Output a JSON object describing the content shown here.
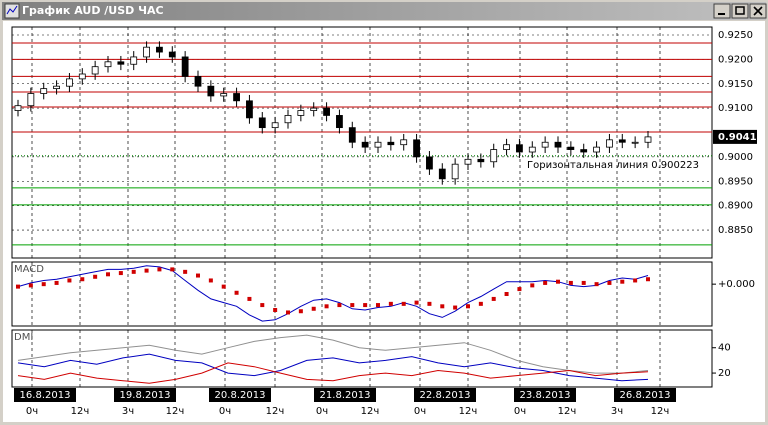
{
  "window": {
    "title": "График AUD /USD ЧАС"
  },
  "time_axis": {
    "dates": [
      "16.8.2013",
      "19.8.2013",
      "20.8.2013",
      "21.8.2013",
      "22.8.2013",
      "23.8.2013",
      "26.8.2013"
    ],
    "hours": [
      "0ч",
      "12ч",
      "3ч",
      "12ч",
      "0ч",
      "12ч",
      "0ч",
      "12ч",
      "0ч",
      "12ч",
      "0ч",
      "12ч",
      "3ч",
      "12ч"
    ]
  },
  "chart_data": [
    {
      "type": "candlestick",
      "open": [
        0.9095,
        0.9105,
        0.913,
        0.914,
        0.9145,
        0.916,
        0.917,
        0.9185,
        0.9195,
        0.919,
        0.9205,
        0.9225,
        0.9215,
        0.9205,
        0.9165,
        0.9145,
        0.9125,
        0.913,
        0.9115,
        0.908,
        0.906,
        0.907,
        0.9085,
        0.9095,
        0.91,
        0.9085,
        0.906,
        0.903,
        0.902,
        0.903,
        0.9025,
        0.9035,
        0.9,
        0.8975,
        0.8955,
        0.8985,
        0.8995,
        0.899,
        0.9015,
        0.9025,
        0.901,
        0.902,
        0.903,
        0.902,
        0.9015,
        0.901,
        0.902,
        0.9035,
        0.903,
        0.903
      ],
      "high": [
        0.9117,
        0.9142,
        0.9152,
        0.9157,
        0.9172,
        0.9182,
        0.9197,
        0.9207,
        0.9207,
        0.9217,
        0.9237,
        0.9237,
        0.9227,
        0.9217,
        0.9177,
        0.9157,
        0.9142,
        0.9142,
        0.9127,
        0.9092,
        0.9082,
        0.9097,
        0.9107,
        0.9112,
        0.9112,
        0.9097,
        0.9072,
        0.9042,
        0.9042,
        0.9042,
        0.9047,
        0.9047,
        0.9012,
        0.8987,
        0.8997,
        0.9007,
        0.9007,
        0.9027,
        0.9037,
        0.9037,
        0.9032,
        0.9042,
        0.9042,
        0.9032,
        0.9027,
        0.9032,
        0.9047,
        0.9047,
        0.9042,
        0.9053
      ],
      "low": [
        0.9083,
        0.9093,
        0.9118,
        0.9128,
        0.9133,
        0.9148,
        0.9158,
        0.9173,
        0.9178,
        0.9178,
        0.9193,
        0.9203,
        0.9193,
        0.9153,
        0.9133,
        0.9113,
        0.9113,
        0.9103,
        0.9068,
        0.9048,
        0.9048,
        0.9058,
        0.9073,
        0.9083,
        0.9073,
        0.9048,
        0.9018,
        0.9008,
        0.9008,
        0.9013,
        0.9013,
        0.8988,
        0.8963,
        0.8943,
        0.8943,
        0.8973,
        0.8978,
        0.8978,
        0.9003,
        0.8998,
        0.8998,
        0.9008,
        0.9008,
        0.9003,
        0.8998,
        0.8998,
        0.9008,
        0.9018,
        0.9018,
        0.9018
      ],
      "close": [
        0.9105,
        0.913,
        0.914,
        0.9145,
        0.916,
        0.917,
        0.9185,
        0.9195,
        0.919,
        0.9205,
        0.9225,
        0.9215,
        0.9205,
        0.9165,
        0.9145,
        0.9125,
        0.913,
        0.9115,
        0.908,
        0.906,
        0.907,
        0.9085,
        0.9095,
        0.91,
        0.9085,
        0.906,
        0.903,
        0.902,
        0.903,
        0.9025,
        0.9035,
        0.9,
        0.8975,
        0.8955,
        0.8985,
        0.8995,
        0.899,
        0.9015,
        0.9025,
        0.901,
        0.902,
        0.903,
        0.902,
        0.9015,
        0.901,
        0.902,
        0.9035,
        0.903,
        0.903,
        0.9041
      ],
      "ylim": [
        0.87926,
        0.92664
      ],
      "yticks": [
        {
          "value": 0.885,
          "label": "0.8850"
        },
        {
          "value": 0.89,
          "label": "0.8900"
        },
        {
          "value": 0.895,
          "label": "0.8950"
        },
        {
          "value": 0.9,
          "label": "0.9000"
        },
        {
          "value": 0.91,
          "label": "0.9100"
        },
        {
          "value": 0.915,
          "label": "0.9150"
        },
        {
          "value": 0.92,
          "label": "0.9200"
        },
        {
          "value": 0.925,
          "label": "0.9250"
        }
      ],
      "red_levels": [
        0.92336,
        0.92,
        0.91651,
        0.91331,
        0.91023,
        0.9051
      ],
      "green_levels": [
        0.89364,
        0.89015,
        0.88195
      ],
      "level_colors": {
        "red": "#c00000",
        "green": "#00a000"
      },
      "hline": {
        "label": "Горизонтальная линия 0.900223",
        "value": 0.900223,
        "color": "#008000"
      },
      "last_price": 0.9041,
      "grid": true
    },
    {
      "type": "line",
      "title": "MACD",
      "series": [
        {
          "color": "#0000c0",
          "style": "solid",
          "values": [
            -0.0002,
            0.0001,
            0.0003,
            0.0004,
            0.0006,
            0.0008,
            0.001,
            0.0012,
            0.0012,
            0.0013,
            0.0015,
            0.0014,
            0.0011,
            0.0003,
            -0.0005,
            -0.0012,
            -0.0015,
            -0.0018,
            -0.0025,
            -0.003,
            -0.0029,
            -0.0024,
            -0.0018,
            -0.0013,
            -0.0012,
            -0.0015,
            -0.002,
            -0.0021,
            -0.0019,
            -0.0018,
            -0.0015,
            -0.0018,
            -0.0024,
            -0.0027,
            -0.0022,
            -0.0015,
            -0.001,
            -0.0004,
            0.0002,
            0.0002,
            0.0002,
            0.0003,
            0.0002,
            -0.0001,
            -0.0002,
            -0.0001,
            0.0003,
            0.0005,
            0.0004,
            0.0007
          ]
        },
        {
          "color": "#d00000",
          "style": "dots",
          "values": [
            -0.0002,
            -0.0001,
            0.0,
            0.0001,
            0.0003,
            0.0004,
            0.0006,
            0.0008,
            0.0009,
            0.001,
            0.0011,
            0.0012,
            0.0012,
            0.001,
            0.0007,
            0.0003,
            -0.0002,
            -0.0007,
            -0.0012,
            -0.0017,
            -0.0021,
            -0.0023,
            -0.0022,
            -0.002,
            -0.0018,
            -0.0017,
            -0.0017,
            -0.0017,
            -0.0017,
            -0.0016,
            -0.0016,
            -0.0015,
            -0.0016,
            -0.0018,
            -0.0019,
            -0.0018,
            -0.0016,
            -0.0012,
            -0.0008,
            -0.0004,
            -0.0001,
            0.0001,
            0.0002,
            0.0001,
            0.0001,
            0.0,
            0.0001,
            0.0002,
            0.0003,
            0.0004
          ]
        }
      ],
      "ylim": [
        -0.0034,
        0.0018
      ],
      "yticks": [
        {
          "value": 0,
          "label": "+0.000"
        }
      ]
    },
    {
      "type": "line",
      "title": "DMI",
      "series": [
        {
          "color": "#909090",
          "style": "solid",
          "values": [
            30,
            33,
            36,
            38,
            40,
            42,
            38,
            35,
            40,
            45,
            48,
            50,
            46,
            40,
            38,
            40,
            42,
            44,
            38,
            30,
            25,
            22,
            20,
            20,
            22
          ]
        },
        {
          "color": "#0000c0",
          "style": "solid",
          "values": [
            28,
            25,
            30,
            27,
            32,
            35,
            30,
            28,
            20,
            18,
            22,
            30,
            32,
            28,
            30,
            33,
            28,
            25,
            28,
            24,
            22,
            18,
            16,
            14,
            15
          ]
        },
        {
          "color": "#d00000",
          "style": "solid",
          "values": [
            18,
            15,
            20,
            16,
            14,
            12,
            15,
            20,
            28,
            25,
            20,
            15,
            14,
            18,
            20,
            18,
            22,
            20,
            16,
            18,
            20,
            22,
            18,
            20,
            21
          ]
        }
      ],
      "ylim": [
        9,
        54
      ],
      "yticks": [
        20,
        40
      ]
    }
  ]
}
